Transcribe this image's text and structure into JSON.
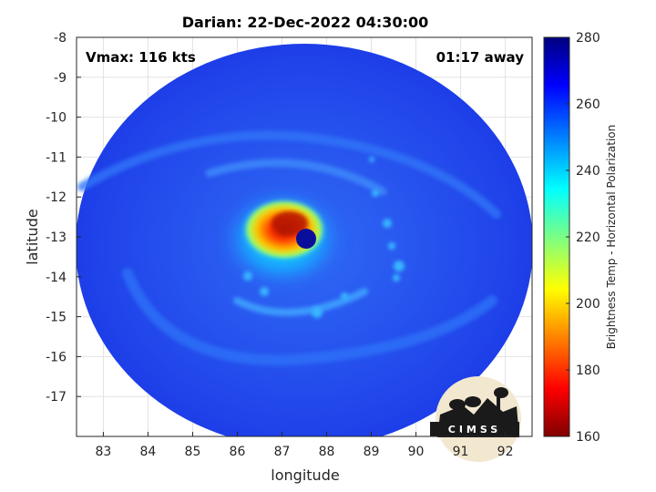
{
  "title": "Darian: 22-Dec-2022 04:30:00",
  "annotations": {
    "vmax": "Vmax: 116 kts",
    "time_away": "01:17 away"
  },
  "axes": {
    "xlabel": "longitude",
    "ylabel": "latitude",
    "xlim": [
      82.4,
      92.6
    ],
    "ylim": [
      -18,
      -8
    ],
    "xticks": [
      "83",
      "84",
      "85",
      "86",
      "87",
      "88",
      "89",
      "90",
      "91",
      "92"
    ],
    "yticks": [
      "-8",
      "-9",
      "-10",
      "-11",
      "-12",
      "-13",
      "-14",
      "-15",
      "-16",
      "-17"
    ],
    "grid": true
  },
  "colorbar": {
    "label": "Brightness Temp - Horizontal Polarization",
    "ticks": [
      "280",
      "260",
      "240",
      "220",
      "200",
      "180",
      "160"
    ],
    "range": [
      160,
      280
    ],
    "colormap": "jet"
  },
  "logo": {
    "text": "CIMSS"
  },
  "colors": {
    "background_cold": "#1c3cf0",
    "outer_disk": "#2b52ea",
    "warm_core": "#c81e0a",
    "eye": "#0b0f9a"
  },
  "storm": {
    "name": "Darian",
    "eye_lon": 87.5,
    "eye_lat": -13.05
  }
}
